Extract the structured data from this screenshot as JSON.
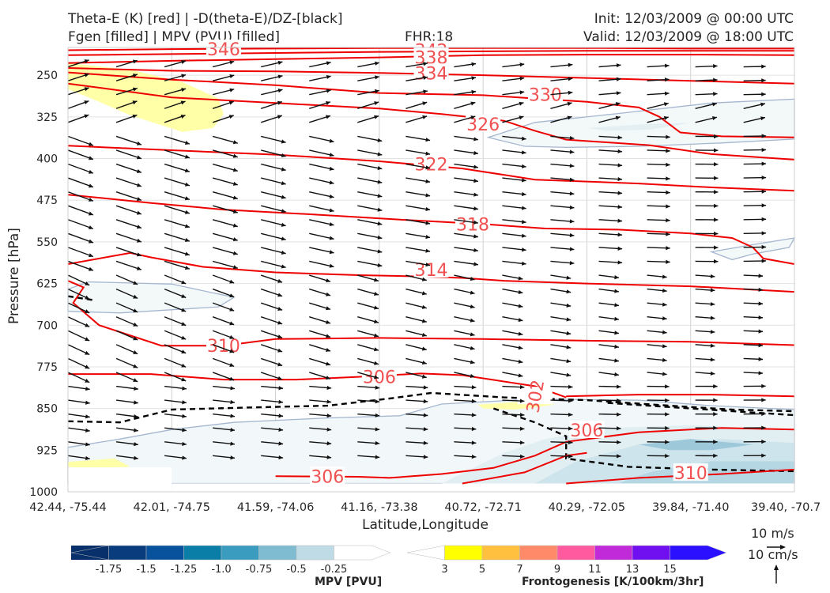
{
  "header": {
    "title_line1": "Theta-E (K) [red] | -D(theta-E)/DZ-[black]",
    "title_line2": "Fgen [filled] | MPV (PVU) [filled]",
    "fhr": "FHR:18",
    "init": "Init: 12/03/2009 @ 00:00 UTC",
    "valid": "Valid: 12/03/2009 @ 18:00 UTC"
  },
  "chart_data": {
    "type": "cross-section",
    "xlabel": "Latitude,Longitude",
    "ylabel": "Pressure [hPa]",
    "x_ticks": [
      "42.44, -75.44",
      "42.01, -74.75",
      "41.59, -74.06",
      "41.16, -73.38",
      "40.72, -72.71",
      "40.29, -72.05",
      "39.84, -71.40",
      "39.40, -70.7"
    ],
    "y_ticks": [
      250,
      325,
      400,
      475,
      550,
      625,
      700,
      775,
      850,
      925,
      1000
    ],
    "ylim": [
      1000,
      200
    ],
    "theta_e_labels": [
      {
        "value": "346",
        "x_index": 1.5,
        "p": 203
      },
      {
        "value": "342",
        "x_index": 3.5,
        "p": 205
      },
      {
        "value": "338",
        "x_index": 3.5,
        "p": 218
      },
      {
        "value": "334",
        "x_index": 3.5,
        "p": 246
      },
      {
        "value": "330",
        "x_index": 4.6,
        "p": 285
      },
      {
        "value": "326",
        "x_index": 4.0,
        "p": 338
      },
      {
        "value": "322",
        "x_index": 3.5,
        "p": 410
      },
      {
        "value": "318",
        "x_index": 3.9,
        "p": 518
      },
      {
        "value": "314",
        "x_index": 3.5,
        "p": 600
      },
      {
        "value": "310",
        "x_index": 1.5,
        "p": 737
      },
      {
        "value": "306",
        "x_index": 3.0,
        "p": 793
      },
      {
        "value": "302",
        "x_index": 4.5,
        "p": 828
      },
      {
        "value": "306",
        "x_index": 5.0,
        "p": 889
      },
      {
        "value": "310",
        "x_index": 6.0,
        "p": 966
      },
      {
        "value": "306",
        "x_index": 2.5,
        "p": 972
      }
    ],
    "wind_reference": {
      "horizontal": "10 m/s",
      "vertical": "10 cm/s"
    },
    "colorbars": [
      {
        "title": "MPV [PVU]",
        "ticks": [
          "-1.75",
          "-1.5",
          "-1.25",
          "-1.0",
          "-0.75",
          "-0.5",
          "-0.25"
        ],
        "colors": [
          "#08306b",
          "#083c7d",
          "#08519c",
          "#0a7ea6",
          "#3a9dc0",
          "#7fbcd2",
          "#bfdce6",
          "#ffffff"
        ]
      },
      {
        "title": "Frontogenesis [K/100km/3hr]",
        "ticks": [
          "3",
          "5",
          "7",
          "9",
          "11",
          "13",
          "15"
        ],
        "colors": [
          "#ffffff",
          "#ffff00",
          "#ffc040",
          "#ff8a6a",
          "#ff5aa0",
          "#c02ad8",
          "#7010f0",
          "#2a10ff"
        ]
      }
    ]
  }
}
